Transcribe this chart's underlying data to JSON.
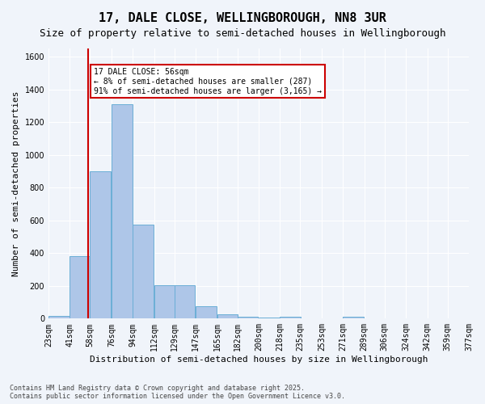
{
  "title": "17, DALE CLOSE, WELLINGBOROUGH, NN8 3UR",
  "subtitle": "Size of property relative to semi-detached houses in Wellingborough",
  "xlabel": "Distribution of semi-detached houses by size in Wellingborough",
  "ylabel": "Number of semi-detached properties",
  "bins": [
    23,
    41,
    58,
    76,
    94,
    112,
    129,
    147,
    165,
    182,
    200,
    218,
    235,
    253,
    271,
    289,
    306,
    324,
    342,
    359,
    377
  ],
  "bar_labels": [
    "23sqm",
    "41sqm",
    "58sqm",
    "76sqm",
    "94sqm",
    "112sqm",
    "129sqm",
    "147sqm",
    "165sqm",
    "182sqm",
    "200sqm",
    "218sqm",
    "235sqm",
    "253sqm",
    "271sqm",
    "289sqm",
    "306sqm",
    "324sqm",
    "342sqm",
    "359sqm",
    "377sqm"
  ],
  "values": [
    18,
    380,
    900,
    1310,
    575,
    205,
    205,
    75,
    25,
    12,
    5,
    10,
    0,
    0,
    10,
    0,
    0,
    0,
    0,
    0
  ],
  "bar_color": "#aec6e8",
  "bar_edge_color": "#6aaed6",
  "property_line_x": 56,
  "property_line_color": "#cc0000",
  "annotation_text": "17 DALE CLOSE: 56sqm\n← 8% of semi-detached houses are smaller (287)\n91% of semi-detached houses are larger (3,165) →",
  "annotation_box_color": "#cc0000",
  "annotation_text_color": "#000000",
  "ylim": [
    0,
    1650
  ],
  "yticks": [
    0,
    200,
    400,
    600,
    800,
    1000,
    1200,
    1400,
    1600
  ],
  "bg_color": "#f0f4fa",
  "grid_color": "#ffffff",
  "footer_text": "Contains HM Land Registry data © Crown copyright and database right 2025.\nContains public sector information licensed under the Open Government Licence v3.0.",
  "title_fontsize": 11,
  "subtitle_fontsize": 9,
  "label_fontsize": 8,
  "tick_fontsize": 7
}
